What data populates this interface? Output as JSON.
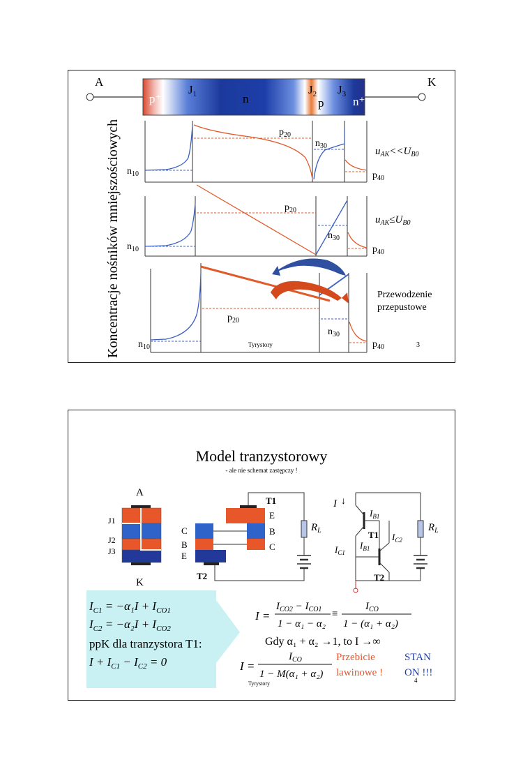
{
  "slide1": {
    "terminal_a": "A",
    "terminal_k": "K",
    "y_axis_label": "Koncentracje nośników mniejszościowych",
    "regions": {
      "p_plus": "p⁺",
      "n": "n",
      "p": "p",
      "n_plus": "n⁺"
    },
    "junctions": {
      "j1": "J",
      "j1_sub": "1",
      "j2": "J",
      "j2_sub": "2",
      "j3": "J",
      "j3_sub": "3"
    },
    "carrier_labels": {
      "n10": "n",
      "n10_sub": "10",
      "p20": "p",
      "p20_sub": "20",
      "n30": "n",
      "n30_sub": "30",
      "p40": "p",
      "p40_sub": "40"
    },
    "cond1": {
      "u": "u",
      "u_sub": "AK",
      "rel": "<<",
      "U": "U",
      "U_sub": "B0"
    },
    "cond2": {
      "u": "u",
      "u_sub": "AK",
      "rel": "≤",
      "U": "U",
      "U_sub": "B0"
    },
    "cond3_line1": "Przewodzenie",
    "cond3_line2": "przepustowe",
    "footer": "Tyrystory",
    "page_number": "3",
    "colors": {
      "electron_curve": "#3a5fbf",
      "hole_curve": "#e05a2a",
      "arrow_blue": "#2f4fa0",
      "arrow_red": "#d44a1c"
    }
  },
  "slide2": {
    "title": "Model tranzystorowy",
    "subtitle": "- ale nie schemat zastępczy !",
    "struct_labels": {
      "a": "A",
      "k": "K",
      "j1": "J1",
      "j2": "J2",
      "j3": "J3"
    },
    "split_labels": {
      "c": "C",
      "b": "B",
      "e": "E",
      "t1": "T1",
      "t2": "T2",
      "e1": "E",
      "b1": "B",
      "c1": "C"
    },
    "rl": "R",
    "rl_sub": "L",
    "circuit_labels": {
      "i": "I",
      "ib1": "I",
      "ib1_sub": "B1",
      "ic2": "I",
      "ic2_sub": "C2",
      "ic1": "I",
      "ic1_sub": "C1",
      "t1": "T1",
      "t2": "T2"
    },
    "eq1": "I",
    "eq1_sub": "C1",
    "eq1_rhs": " = −α₁I + I",
    "eq1_rhs_sub": "CO1",
    "eq2": "I",
    "eq2_sub": "C2",
    "eq2_rhs": " = −α₂I + I",
    "eq2_rhs_sub": "CO2",
    "kcl_label": "ppK dla tranzystora T1:",
    "kcl_eq": "I + I",
    "kcl_sub1": "C1",
    "kcl_mid": " − I",
    "kcl_sub2": "C2",
    "kcl_end": " = 0",
    "frac1_num": "I",
    "frac1_num_sub1": "CO2",
    "frac1_num_mid": " − I",
    "frac1_num_sub2": "CO1",
    "frac1_den": "1 − α₁ − α₂",
    "equiv": "≡",
    "frac2_num": "I",
    "frac2_num_sub": "CO",
    "frac2_den": "1 − (α₁ + α₂)",
    "gdy": "Gdy α₁ + α₂ →1, to I →∞",
    "frac3_num": "I",
    "frac3_num_sub": "CO",
    "frac3_den": "1 − M(α₁ + α₂)",
    "i_eq": "I =",
    "przebicie": "Przebicie",
    "lawinowe": "lawinowe !",
    "stan": "STAN",
    "on": "ON !!!",
    "footer": "Tyrystory",
    "page_number": "4",
    "colors": {
      "orange": "#e8572a",
      "blue_layer": "#2f63c9",
      "dark_layer": "#23399a",
      "highlight_bg": "#c9f1f3",
      "orange_text": "#e8572a",
      "blue_text": "#1e3fb0"
    }
  }
}
